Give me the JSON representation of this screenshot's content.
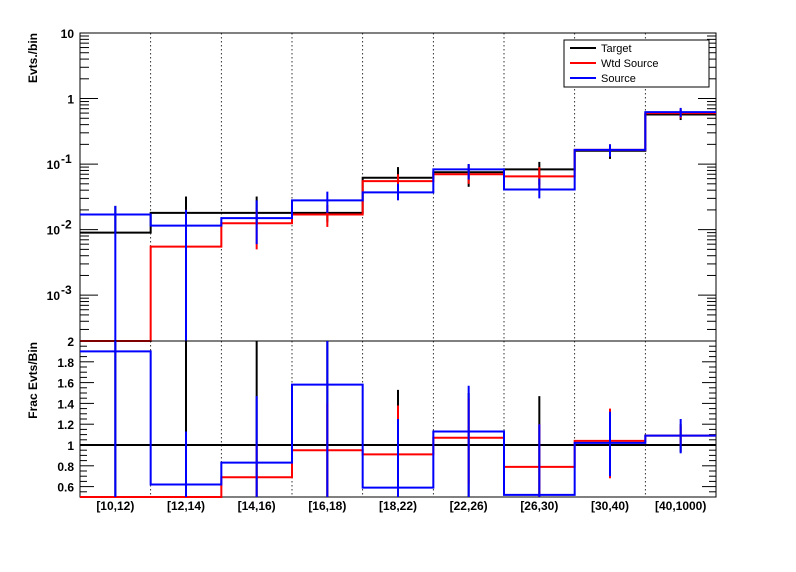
{
  "chart_data": [
    {
      "type": "line",
      "subtype": "step-histogram",
      "ylabel": "Evts./bin",
      "yscale": "log",
      "ylim": [
        0.0002,
        10
      ],
      "y_ticks": [
        {
          "value": 10,
          "label": "10"
        },
        {
          "value": 1,
          "label": "1"
        },
        {
          "value": 0.1,
          "label": "10",
          "exp": "-1"
        },
        {
          "value": 0.01,
          "label": "10",
          "exp": "-2"
        },
        {
          "value": 0.001,
          "label": "10",
          "exp": "-3"
        }
      ],
      "categories": [
        "[10,12)",
        "[12,14)",
        "[14,16)",
        "[16,18)",
        "[18,22)",
        "[22,26)",
        "[26,30)",
        "[30,40)",
        "[40,1000)"
      ],
      "grid": "vertical-dotted",
      "legend_position": "top-right",
      "series": [
        {
          "name": "Target",
          "color": "#000000",
          "values": [
            0.009,
            0.018,
            0.018,
            0.018,
            0.062,
            0.075,
            0.083,
            0.16,
            0.57
          ],
          "err_low": [
            0.009,
            0.018,
            0.012,
            0.013,
            0.04,
            0.045,
            0.048,
            0.12,
            0.47
          ],
          "err_high": [
            0.023,
            0.032,
            0.032,
            0.018,
            0.09,
            0.1,
            0.108,
            0.2,
            0.67
          ]
        },
        {
          "name": "Wtd Source",
          "color": "#ff0000",
          "values": [
            1e-05,
            0.0055,
            0.0125,
            0.017,
            0.055,
            0.07,
            0.065,
            0.165,
            0.6
          ],
          "err_low": [
            null,
            1e-05,
            0.005,
            0.011,
            0.04,
            0.05,
            0.04,
            0.13,
            0.5
          ],
          "err_high": [
            null,
            0.02,
            0.02,
            0.024,
            0.07,
            0.09,
            0.09,
            0.2,
            0.7
          ]
        },
        {
          "name": "Source",
          "color": "#0000ff",
          "values": [
            0.017,
            0.0115,
            0.015,
            0.028,
            0.037,
            0.083,
            0.041,
            0.165,
            0.62
          ],
          "err_low": [
            1e-05,
            1e-05,
            0.006,
            0.018,
            0.028,
            0.058,
            0.03,
            0.13,
            0.52
          ],
          "err_high": [
            0.023,
            0.02,
            0.028,
            0.038,
            0.05,
            0.1,
            0.06,
            0.2,
            0.72
          ]
        }
      ]
    },
    {
      "type": "line",
      "subtype": "step-histogram-ratio",
      "ylabel": "Frac Evts/Bin",
      "ylim": [
        0.5,
        2.0
      ],
      "y_ticks": [
        0.6,
        0.8,
        1,
        1.2,
        1.4,
        1.6,
        1.8,
        2
      ],
      "reference_line": 1,
      "categories": [
        "[10,12)",
        "[12,14)",
        "[14,16)",
        "[16,18)",
        "[18,22)",
        "[22,26)",
        "[26,30)",
        "[30,40)",
        "[40,1000)"
      ],
      "series": [
        {
          "name": "Target",
          "color": "#000000",
          "values": [
            1,
            1,
            1,
            1,
            1,
            1,
            1,
            1,
            1
          ],
          "err_low": [
            0.5,
            0.5,
            0.5,
            0.5,
            0.5,
            0.5,
            0.5,
            0.78,
            0.93
          ],
          "err_high": [
            2.0,
            2.0,
            2.0,
            2.0,
            1.53,
            1.5,
            1.47,
            1.3,
            1.2
          ]
        },
        {
          "name": "Wtd Source",
          "color": "#ff0000",
          "values": [
            0.5,
            0.5,
            0.69,
            0.95,
            0.91,
            1.07,
            0.79,
            1.04,
            1.09
          ],
          "err_low": [
            null,
            null,
            0.5,
            0.5,
            0.5,
            0.62,
            0.5,
            0.68,
            1.0
          ],
          "err_high": [
            null,
            null,
            1.0,
            1.4,
            1.38,
            1.45,
            1.2,
            1.35,
            1.18
          ]
        },
        {
          "name": "Source",
          "color": "#0000ff",
          "values": [
            1.9,
            0.62,
            0.83,
            1.58,
            0.59,
            1.13,
            0.52,
            1.02,
            1.09
          ],
          "err_low": [
            0.5,
            0.5,
            0.5,
            0.5,
            0.5,
            0.5,
            0.5,
            0.7,
            0.92
          ],
          "err_high": [
            2.0,
            1.13,
            1.47,
            2.0,
            1.25,
            1.57,
            1.2,
            1.32,
            1.25
          ]
        }
      ]
    }
  ]
}
